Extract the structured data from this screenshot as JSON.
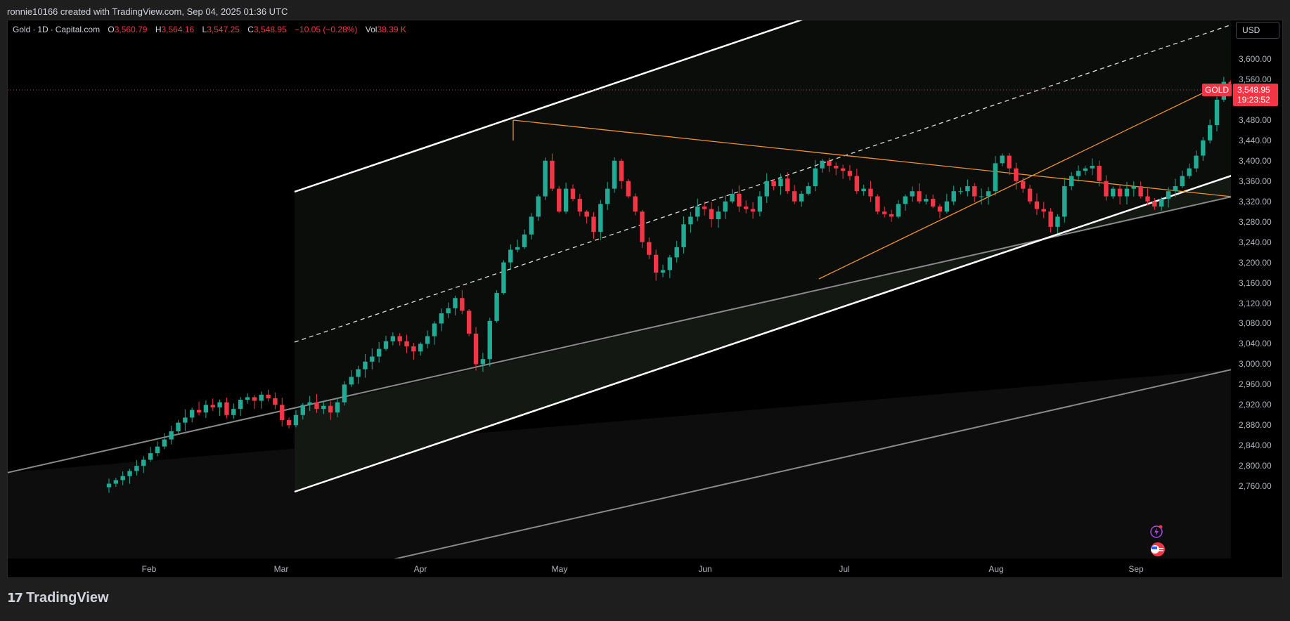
{
  "header": {
    "credit": "ronnie10166 created with TradingView.com, Sep 04, 2025 01:36 UTC"
  },
  "legend": {
    "symbol": "Gold",
    "interval": "1D",
    "source": "Capital.com",
    "open_label": "O",
    "open": "3,560.79",
    "high_label": "H",
    "high": "3,564.16",
    "low_label": "L",
    "low": "3,547.25",
    "close_label": "C",
    "close": "3,548.95",
    "change": "−10.05 (−0.28%)",
    "vol_label": "Vol",
    "vol": "38.39 K"
  },
  "currency": "USD",
  "last_price_tag": {
    "symbol": "GOLD",
    "price": "3,548.95",
    "countdown": "19:23:52"
  },
  "footer": {
    "brand": "TradingView"
  },
  "colors": {
    "up": "#22ab94",
    "down": "#f23645",
    "background": "#000000",
    "orange_lines": "#f0922b"
  },
  "icons": [
    "lightning-icon",
    "us-flag-icon"
  ],
  "chart_data": {
    "type": "candlestick",
    "symbol": "Gold",
    "interval": "1D",
    "ylim": [
      2750,
      3655
    ],
    "x_tick_labels": [
      "Feb",
      "Mar",
      "Apr",
      "May",
      "Jun",
      "Jul",
      "Aug",
      "Sep"
    ],
    "y_tick_labels": [
      "3,600.00",
      "3,560.00",
      "3,520.00",
      "3,480.00",
      "3,440.00",
      "3,400.00",
      "3,360.00",
      "3,320.00",
      "3,280.00",
      "3,240.00",
      "3,200.00",
      "3,160.00",
      "3,120.00",
      "3,080.00",
      "3,040.00",
      "3,000.00",
      "2,960.00",
      "2,920.00",
      "2,880.00",
      "2,840.00",
      "2,800.00",
      "2,760.00"
    ],
    "closes": [
      2765,
      2772,
      2780,
      2790,
      2800,
      2812,
      2825,
      2838,
      2852,
      2868,
      2885,
      2895,
      2910,
      2905,
      2920,
      2915,
      2925,
      2900,
      2912,
      2930,
      2935,
      2928,
      2940,
      2933,
      2920,
      2890,
      2880,
      2900,
      2920,
      2925,
      2912,
      2918,
      2905,
      2925,
      2960,
      2975,
      2990,
      3005,
      3015,
      3030,
      3045,
      3055,
      3045,
      3035,
      3025,
      3040,
      3055,
      3080,
      3100,
      3110,
      3130,
      3105,
      3060,
      3000,
      3010,
      3085,
      3140,
      3200,
      3225,
      3230,
      3255,
      3290,
      3330,
      3400,
      3345,
      3300,
      3345,
      3325,
      3300,
      3290,
      3260,
      3315,
      3345,
      3400,
      3360,
      3330,
      3300,
      3240,
      3215,
      3180,
      3185,
      3210,
      3230,
      3275,
      3290,
      3310,
      3305,
      3285,
      3300,
      3320,
      3335,
      3310,
      3305,
      3300,
      3330,
      3360,
      3350,
      3365,
      3340,
      3320,
      3335,
      3350,
      3385,
      3400,
      3390,
      3385,
      3380,
      3370,
      3340,
      3345,
      3330,
      3300,
      3295,
      3290,
      3315,
      3330,
      3340,
      3320,
      3325,
      3310,
      3300,
      3320,
      3340,
      3340,
      3350,
      3330,
      3330,
      3340,
      3395,
      3410,
      3385,
      3360,
      3345,
      3320,
      3305,
      3300,
      3270,
      3290,
      3350,
      3370,
      3380,
      3385,
      3390,
      3360,
      3330,
      3345,
      3330,
      3345,
      3350,
      3330,
      3320,
      3310,
      3325,
      3340,
      3350,
      3370,
      3385,
      3410,
      3440,
      3470,
      3520,
      3555,
      3548.95
    ]
  }
}
